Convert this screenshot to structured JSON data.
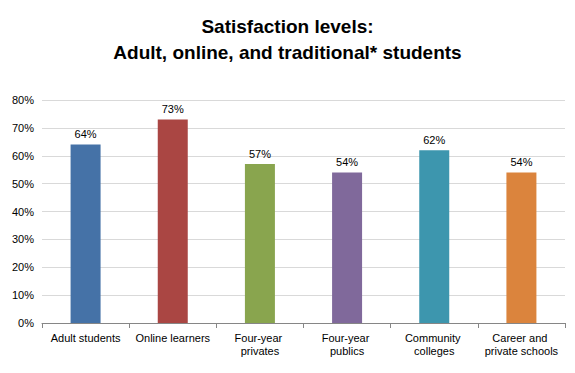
{
  "chart_data": {
    "type": "bar",
    "title": "Satisfaction levels:\nAdult, online, and traditional* students",
    "categories": [
      "Adult students",
      "Online learners",
      "Four-year privates",
      "Four-year publics",
      "Community colleges",
      "Career and private schools"
    ],
    "values": [
      64,
      73,
      57,
      54,
      62,
      54
    ],
    "value_labels": [
      "64%",
      "73%",
      "57%",
      "54%",
      "62%",
      "54%"
    ],
    "colors": [
      "#4572A7",
      "#AA4643",
      "#89A54E",
      "#80699B",
      "#3D96AE",
      "#DB843D"
    ],
    "ylim": [
      0,
      80
    ],
    "yticks": [
      {
        "value": 0,
        "label": "0%"
      },
      {
        "value": 10,
        "label": "10%"
      },
      {
        "value": 20,
        "label": "20%"
      },
      {
        "value": 30,
        "label": "30%"
      },
      {
        "value": 40,
        "label": "40%"
      },
      {
        "value": 50,
        "label": "50%"
      },
      {
        "value": 60,
        "label": "60%"
      },
      {
        "value": 70,
        "label": "70%"
      },
      {
        "value": 80,
        "label": "80%"
      }
    ],
    "grid": true,
    "data_labels": true
  }
}
